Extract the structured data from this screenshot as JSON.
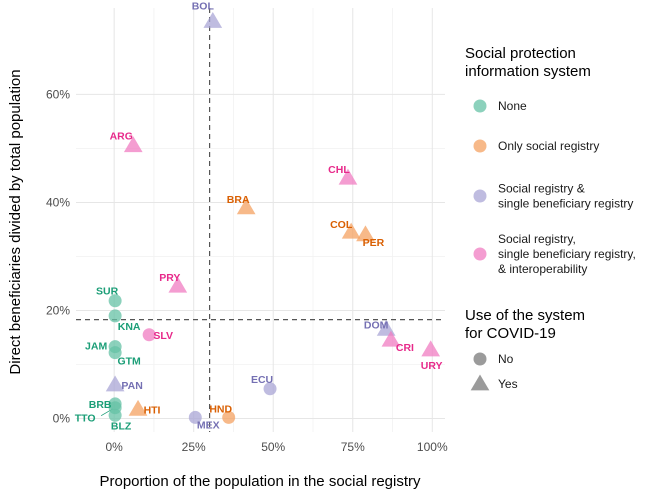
{
  "chart_data": {
    "type": "scatter",
    "title": "",
    "xlabel": "Proportion of the population in the social registry",
    "ylabel": "Direct beneficiaries divided by total population",
    "xlim": [
      -0.12,
      1.04
    ],
    "ylim": [
      -0.025,
      0.76
    ],
    "x_ticks": [
      {
        "value": 0,
        "label": "0%"
      },
      {
        "value": 0.25,
        "label": "25%"
      },
      {
        "value": 0.5,
        "label": "50%"
      },
      {
        "value": 0.75,
        "label": "75%"
      },
      {
        "value": 1.0,
        "label": "100%"
      }
    ],
    "y_ticks": [
      {
        "value": 0,
        "label": "0%"
      },
      {
        "value": 0.2,
        "label": "20%"
      },
      {
        "value": 0.4,
        "label": "40%"
      },
      {
        "value": 0.6,
        "label": "60%"
      }
    ],
    "grid": true,
    "reference_lines": {
      "x": 0.3,
      "y": 0.183
    },
    "legend_placement": "right",
    "category_legend": {
      "title_lines": [
        "Social protection",
        "information system"
      ],
      "items": [
        {
          "key": "none",
          "lines": [
            "None"
          ],
          "color": "#66c2a5"
        },
        {
          "key": "registry",
          "lines": [
            "Only social registry"
          ],
          "color": "#f4a261"
        },
        {
          "key": "single",
          "lines": [
            "Social registry &",
            "single beneficiary registry"
          ],
          "color": "#a9a5d6"
        },
        {
          "key": "interop",
          "lines": [
            "Social registry,",
            "single beneficiary registry,",
            "& interoperability"
          ],
          "color": "#f07cc1"
        }
      ]
    },
    "shape_legend": {
      "title_lines": [
        "Use of the system",
        "for COVID-19"
      ],
      "items": [
        {
          "key": "no",
          "label": "No",
          "shape": "circle"
        },
        {
          "key": "yes",
          "label": "Yes",
          "shape": "triangle"
        }
      ]
    },
    "label_colors": {
      "none": "#1b9e77",
      "registry": "#d95f02",
      "single": "#7570b3",
      "interop": "#e7298a"
    },
    "points": [
      {
        "label": "BOL",
        "x": 0.31,
        "y": 0.735,
        "category": "single",
        "covid": "yes"
      },
      {
        "label": "ARG",
        "x": 0.06,
        "y": 0.505,
        "category": "interop",
        "covid": "yes"
      },
      {
        "label": "CHL",
        "x": 0.735,
        "y": 0.445,
        "category": "interop",
        "covid": "yes"
      },
      {
        "label": "BRA",
        "x": 0.415,
        "y": 0.39,
        "category": "registry",
        "covid": "yes"
      },
      {
        "label": "COL",
        "x": 0.745,
        "y": 0.345,
        "category": "registry",
        "covid": "yes"
      },
      {
        "label": "PER",
        "x": 0.79,
        "y": 0.34,
        "category": "registry",
        "covid": "yes"
      },
      {
        "label": "PRY",
        "x": 0.2,
        "y": 0.245,
        "category": "interop",
        "covid": "yes"
      },
      {
        "label": "SUR",
        "x": 0.003,
        "y": 0.218,
        "category": "none",
        "covid": "no"
      },
      {
        "label": "KNA",
        "x": 0.003,
        "y": 0.19,
        "category": "none",
        "covid": "no"
      },
      {
        "label": "SLV",
        "x": 0.11,
        "y": 0.155,
        "category": "interop",
        "covid": "no"
      },
      {
        "label": "JAM",
        "x": 0.003,
        "y": 0.133,
        "category": "none",
        "covid": "no"
      },
      {
        "label": "GTM",
        "x": 0.003,
        "y": 0.122,
        "category": "none",
        "covid": "no"
      },
      {
        "label": "DOM",
        "x": 0.855,
        "y": 0.165,
        "category": "single",
        "covid": "yes"
      },
      {
        "label": "CRI",
        "x": 0.87,
        "y": 0.145,
        "category": "interop",
        "covid": "yes"
      },
      {
        "label": "URY",
        "x": 0.995,
        "y": 0.127,
        "category": "interop",
        "covid": "yes"
      },
      {
        "label": "PAN",
        "x": 0.003,
        "y": 0.062,
        "category": "single",
        "covid": "yes"
      },
      {
        "label": "ECU",
        "x": 0.49,
        "y": 0.055,
        "category": "single",
        "covid": "no"
      },
      {
        "label": "BRB",
        "x": 0.003,
        "y": 0.027,
        "category": "none",
        "covid": "no"
      },
      {
        "label": "HTI",
        "x": 0.075,
        "y": 0.017,
        "category": "registry",
        "covid": "yes"
      },
      {
        "label": "BLZ",
        "x": 0.003,
        "y": 0.006,
        "category": "none",
        "covid": "no"
      },
      {
        "label": "TTO",
        "x": 0.003,
        "y": 0.02,
        "category": "none",
        "covid": "no"
      },
      {
        "label": "MEX",
        "x": 0.255,
        "y": 0.002,
        "category": "single",
        "covid": "no"
      },
      {
        "label": "HND",
        "x": 0.36,
        "y": 0.002,
        "category": "registry",
        "covid": "no"
      }
    ]
  }
}
